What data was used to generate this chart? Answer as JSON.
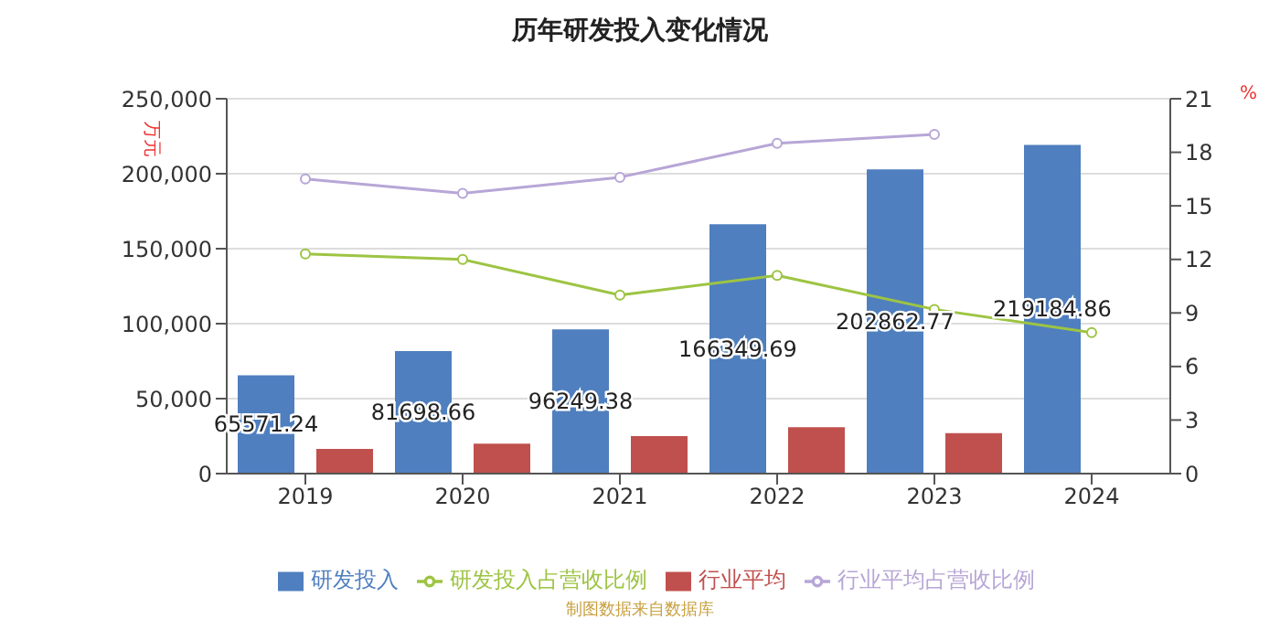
{
  "chart_data": {
    "type": "bar",
    "title": "历年研发投入变化情况",
    "ylabel": "万元",
    "y2label": "%",
    "categories": [
      "2019",
      "2020",
      "2021",
      "2022",
      "2023",
      "2024"
    ],
    "series": [
      {
        "name": "研发投入",
        "color": "#4f7fbf",
        "values": [
          65571.24,
          81698.66,
          96249.38,
          166349.69,
          202862.77,
          219184.86
        ],
        "value_labels": [
          "65571.24",
          "81698.66",
          "96249.38",
          "166349.69",
          "202862.77",
          "219184.86"
        ]
      },
      {
        "name": "研发投入占营收比例",
        "type": "line",
        "axis": "y2",
        "color": "#9dc443",
        "values": [
          12.3,
          12.0,
          10.0,
          11.1,
          9.2,
          7.9
        ]
      },
      {
        "name": "行业平均",
        "color": "#c0504d",
        "values": [
          16500,
          20000,
          25000,
          31000,
          27000,
          null
        ]
      },
      {
        "name": "行业平均占营收比例",
        "type": "line",
        "axis": "y2",
        "color": "#b7a6d6",
        "values": [
          16.5,
          15.7,
          16.6,
          18.5,
          19.0,
          null
        ]
      }
    ],
    "ylim": [
      0,
      250000
    ],
    "yticks": [
      0,
      {
        "value": 50000,
        "label": "50,000"
      },
      {
        "value": 100000,
        "label": "100,000"
      },
      {
        "value": 150000,
        "label": "150,000"
      },
      {
        "value": 200000,
        "label": "200,000"
      },
      {
        "value": 250000,
        "label": "250,000"
      }
    ],
    "y2lim": [
      0,
      21
    ],
    "y2ticks": [
      0,
      3,
      6,
      9,
      12,
      15,
      18,
      21
    ],
    "grid": "y",
    "legend": "bottom",
    "marker": "circle",
    "annotations": [
      "制图数据来自数据库"
    ]
  }
}
